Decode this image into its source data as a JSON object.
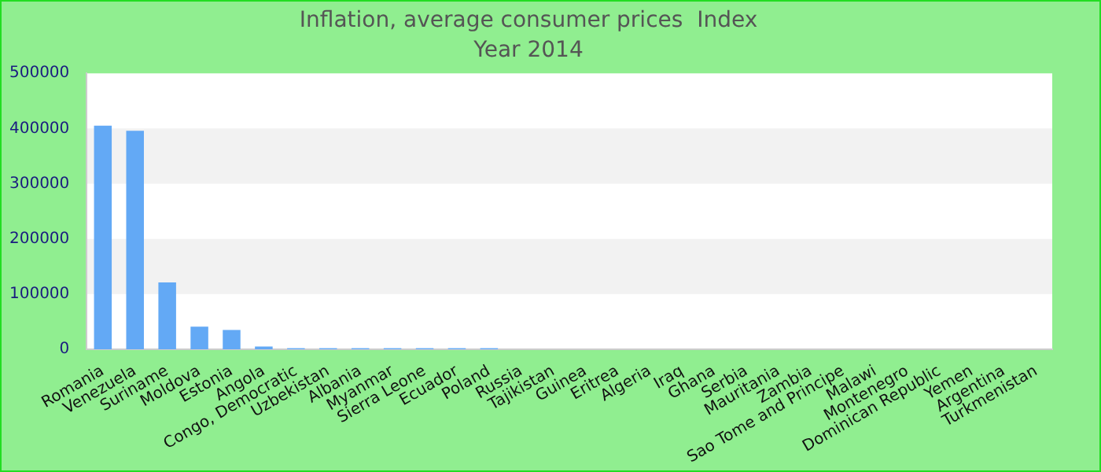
{
  "chart_data": {
    "type": "bar",
    "title": "Inflation, average consumer prices  Index",
    "subtitle": "Year 2014",
    "categories": [
      "Romania",
      "Venezuela",
      "Suriname",
      "Moldova",
      "Estonia",
      "Angola",
      "Congo, Democratic",
      "Uzbekistan",
      "Albania",
      "Myanmar",
      "Sierra Leone",
      "Ecuador",
      "Poland",
      "Russia",
      "Tajikistan",
      "Guinea",
      "Eritrea",
      "Algeria",
      "Iraq",
      "Ghana",
      "Serbia",
      "Mauritania",
      "Zambia",
      "Sao Tome and Principe",
      "Malawi",
      "Montenegro",
      "Dominican Republic",
      "Yemen",
      "Argentina",
      "Turkmenistan"
    ],
    "values": [
      405000,
      396000,
      121000,
      41000,
      35000,
      5000,
      2000,
      2000,
      2000,
      2000,
      2000,
      2000,
      2000,
      0,
      0,
      0,
      0,
      0,
      0,
      0,
      0,
      0,
      0,
      0,
      0,
      0,
      0,
      0,
      0,
      0
    ],
    "color": "#63a9f5",
    "ylim": [
      0,
      500000
    ],
    "yticks": [
      0,
      100000,
      200000,
      300000,
      400000,
      500000
    ],
    "legend": false
  }
}
